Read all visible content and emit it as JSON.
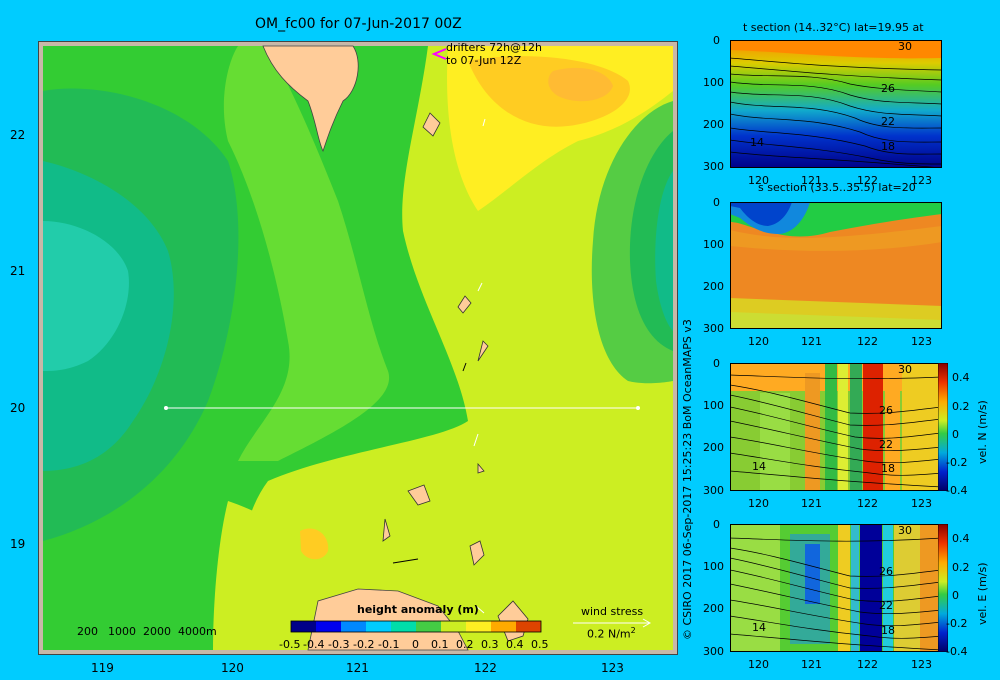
{
  "main": {
    "title": "OM_fc00 for 07-Jun-2017 00Z",
    "drifters_line1": "drifters 72h@12h",
    "drifters_line2": "to 07-Jun 12Z",
    "lon_ticks": [
      "119",
      "120",
      "121",
      "122",
      "123"
    ],
    "lat_ticks": [
      "22",
      "21",
      "20",
      "19"
    ],
    "depth_legend": [
      "200",
      "1000",
      "2000",
      "4000m"
    ],
    "colorbar_title": "height anomaly  (m)",
    "colorbar_labels": [
      "-0.5",
      "-0.4",
      "-0.3",
      "-0.2",
      "-0.1",
      "0",
      "0.1",
      "0.2",
      "0.3",
      "0.4",
      "0.5"
    ],
    "wind_label": "wind stress",
    "wind_value": "0.2 N/m",
    "wind_exp": "2"
  },
  "panels": {
    "p1": {
      "title": "t section (14..32°C) lat=19.95 at",
      "contours": [
        "30",
        "26",
        "22",
        "18",
        "14"
      ]
    },
    "p2": {
      "title": "s section (33.5..35.5) lat=20"
    },
    "p3": {
      "cb_label": "vel. N  (m/s)",
      "contours": [
        "30",
        "26",
        "22",
        "18",
        "14"
      ]
    },
    "p4": {
      "cb_label": "vel. E  (m/s)",
      "contours": [
        "30",
        "26",
        "22",
        "18",
        "14"
      ]
    },
    "x_ticks": [
      "120",
      "121",
      "122",
      "123"
    ],
    "y_ticks": [
      "0",
      "100",
      "200",
      "300"
    ],
    "cb_ticks": [
      "0.4",
      "0.2",
      "0",
      "-0.2",
      "-0.4"
    ]
  },
  "credit": "© CSIRO 2017   06-Sep-2017 15:25:23 BoM OceanMAPS v3",
  "colors": {
    "background": "#00ccff",
    "land": "#ffcc99",
    "frame": "#c8b8a8"
  }
}
